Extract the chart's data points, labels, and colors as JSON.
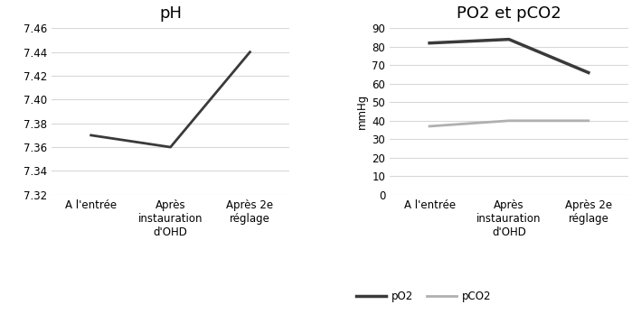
{
  "categories": [
    "A l'entrée",
    "Après\ninstauration\nd'OHD",
    "Après 2e\nréglage"
  ],
  "ph_values": [
    7.37,
    7.36,
    7.44
  ],
  "ph_title": "pH",
  "ph_ylim": [
    7.32,
    7.46
  ],
  "ph_yticks": [
    7.32,
    7.34,
    7.36,
    7.38,
    7.4,
    7.42,
    7.44,
    7.46
  ],
  "po2_values": [
    82,
    84,
    66
  ],
  "pco2_values": [
    37,
    40,
    40
  ],
  "po2_pco2_title": "PO2 et pCO2",
  "po2_pco2_ylabel": "mmHg",
  "po2_pco2_ylim": [
    0,
    90
  ],
  "po2_pco2_yticks": [
    0,
    10,
    20,
    30,
    40,
    50,
    60,
    70,
    80,
    90
  ],
  "po2_color": "#3a3a3a",
  "pco2_color": "#b0b0b0",
  "line_color_ph": "#3a3a3a",
  "background_color": "#ffffff",
  "grid_color": "#d8d8d8",
  "title_fontsize": 13,
  "tick_fontsize": 8.5,
  "label_fontsize": 8.5,
  "legend_labels": [
    "pO2",
    "pCO2"
  ],
  "figsize": [
    7.09,
    3.48
  ],
  "dpi": 100
}
